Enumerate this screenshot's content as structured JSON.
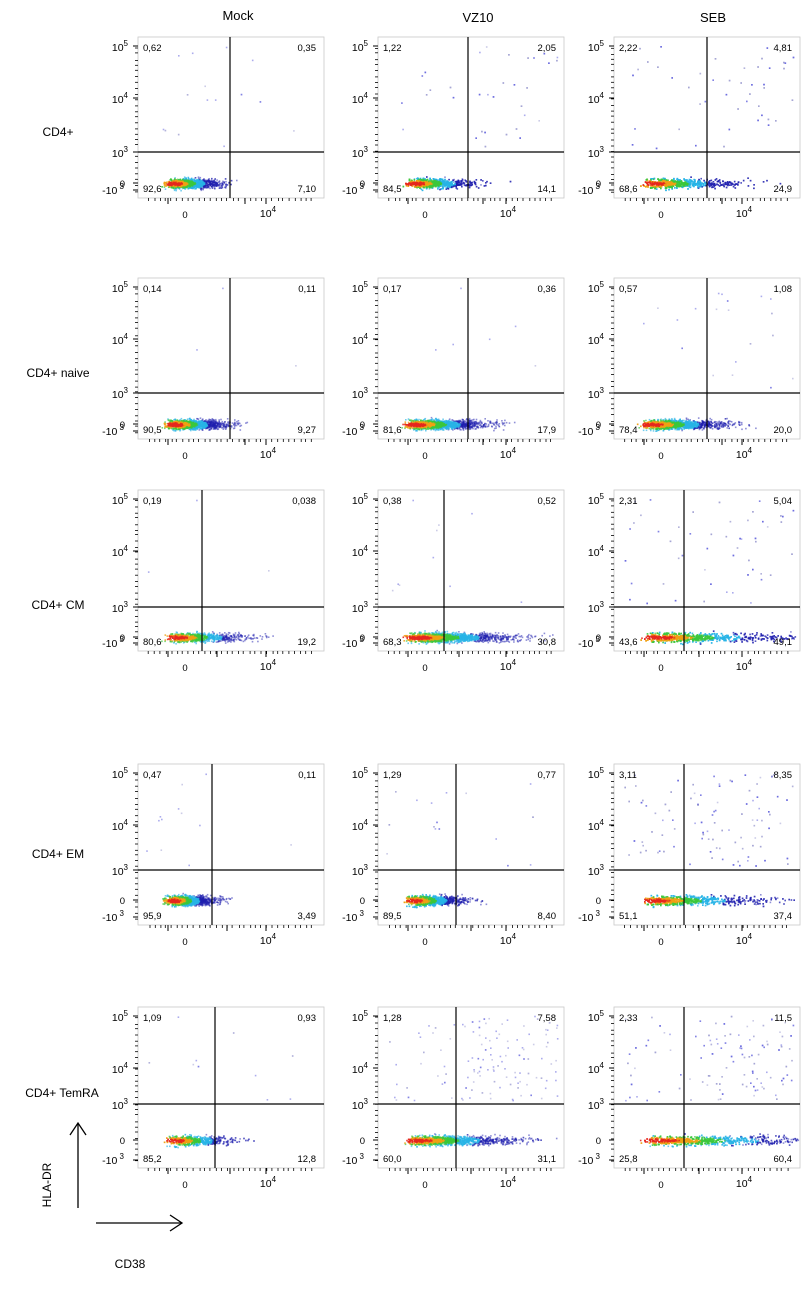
{
  "figure": {
    "column_headers": [
      "Mock",
      "VZ10",
      "SEB"
    ],
    "row_labels": [
      "CD4+",
      "CD4+ naive",
      "CD4+ CM",
      "CD4+ EM",
      "CD4+ TemRA"
    ],
    "y_axis_label": "HLA-DR",
    "x_axis_label": "CD38"
  },
  "chart_data": {
    "type": "scatter",
    "plot_kind": "flow cytometry pseudocolor dot plot grid",
    "x_axis": {
      "label": "CD38",
      "scale": "biexponential",
      "tick_labels": [
        "0",
        "10^4"
      ]
    },
    "y_axis": {
      "label": "HLA-DR",
      "scale": "biexponential",
      "tick_labels": [
        "10^5",
        "10^4",
        "10^3",
        "0",
        "-10^3"
      ]
    },
    "quadrant_order": [
      "upper-left",
      "upper-right",
      "lower-left",
      "lower-right"
    ],
    "colors": {
      "density_scale": [
        "#1a1aa6",
        "#28b4e6",
        "#3cc83c",
        "#f0e61e",
        "#f09614",
        "#e6281e"
      ],
      "gate_lines": "#000000"
    },
    "panels": [
      {
        "row": "CD4+",
        "column": "Mock",
        "quadrants": [
          "0,62",
          "0,35",
          "92,6",
          "7,10"
        ]
      },
      {
        "row": "CD4+",
        "column": "VZ10",
        "quadrants": [
          "1,22",
          "2,05",
          "84,5",
          "14,1"
        ]
      },
      {
        "row": "CD4+",
        "column": "SEB",
        "quadrants": [
          "2,22",
          "4,81",
          "68,6",
          "24,9"
        ]
      },
      {
        "row": "CD4+ naive",
        "column": "Mock",
        "quadrants": [
          "0,14",
          "0,11",
          "90,5",
          "9,27"
        ]
      },
      {
        "row": "CD4+ naive",
        "column": "VZ10",
        "quadrants": [
          "0,17",
          "0,36",
          "81,6",
          "17,9"
        ]
      },
      {
        "row": "CD4+ naive",
        "column": "SEB",
        "quadrants": [
          "0,57",
          "1,08",
          "78,4",
          "20,0"
        ]
      },
      {
        "row": "CD4+ CM",
        "column": "Mock",
        "quadrants": [
          "0,19",
          "0,038",
          "80,6",
          "19,2"
        ]
      },
      {
        "row": "CD4+ CM",
        "column": "VZ10",
        "quadrants": [
          "0,38",
          "0,52",
          "68,3",
          "30,8"
        ]
      },
      {
        "row": "CD4+ CM",
        "column": "SEB",
        "quadrants": [
          "2,31",
          "5,04",
          "43,6",
          "49,1"
        ]
      },
      {
        "row": "CD4+ EM",
        "column": "Mock",
        "quadrants": [
          "0,47",
          "0,11",
          "95,9",
          "3,49"
        ]
      },
      {
        "row": "CD4+ EM",
        "column": "VZ10",
        "quadrants": [
          "1,29",
          "0,77",
          "89,5",
          "8,40"
        ]
      },
      {
        "row": "CD4+ EM",
        "column": "SEB",
        "quadrants": [
          "3,11",
          "8,35",
          "51,1",
          "37,4"
        ]
      },
      {
        "row": "CD4+ TemRA",
        "column": "Mock",
        "quadrants": [
          "1,09",
          "0,93",
          "85,2",
          "12,8"
        ]
      },
      {
        "row": "CD4+ TemRA",
        "column": "VZ10",
        "quadrants": [
          "1,28",
          "7,58",
          "60,0",
          "31,1"
        ]
      },
      {
        "row": "CD4+ TemRA",
        "column": "SEB",
        "quadrants": [
          "2,33",
          "11,5",
          "25,8",
          "60,4"
        ]
      }
    ]
  }
}
